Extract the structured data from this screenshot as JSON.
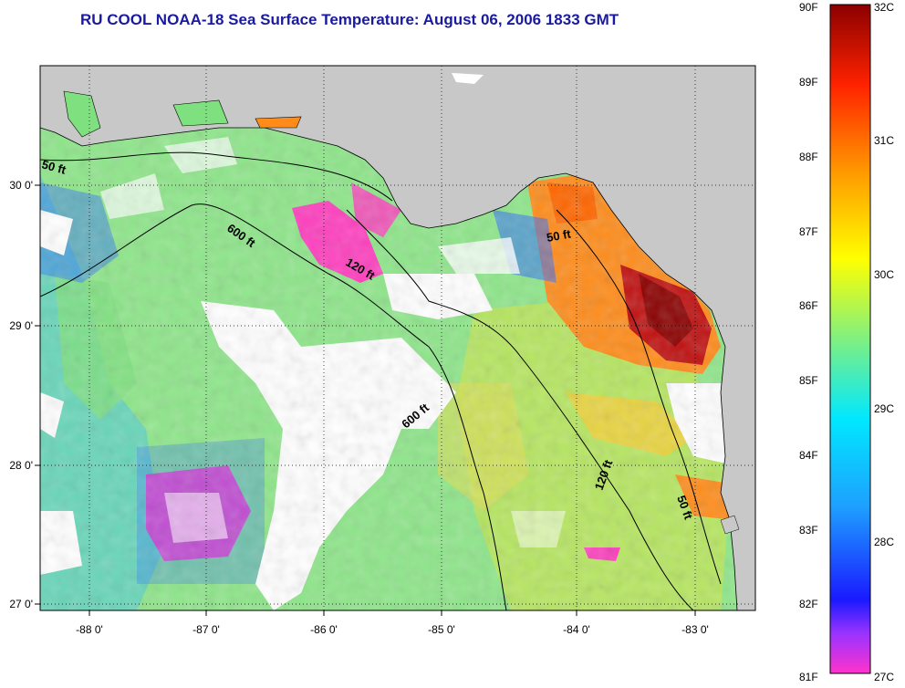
{
  "title": "RU COOL  NOAA-18  Sea Surface Temperature:  August 06, 2006 1833 GMT",
  "map": {
    "lon_labels": [
      "-88 0'",
      "-87 0'",
      "-86 0'",
      "-85 0'",
      "-84 0'",
      "-83 0'"
    ],
    "lat_labels": [
      "30 0'",
      "29 0'",
      "28 0'",
      "27 0'"
    ],
    "contours": [
      "50 ft",
      "600 ft",
      "120 ft",
      "50 ft",
      "600 ft",
      "120 ft",
      "50 ft"
    ],
    "colors": {
      "land": "#c8c8c8",
      "cloud": "#ffffff",
      "cool": "#ff3fbf",
      "mid": "#7ee07e",
      "warm": "#ff8800",
      "hot": "#a00000"
    }
  },
  "colorbar": {
    "f_labels": [
      "90F",
      "89F",
      "88F",
      "87F",
      "86F",
      "85F",
      "84F",
      "83F",
      "82F",
      "81F"
    ],
    "c_labels": [
      "32C",
      "31C",
      "30C",
      "29C",
      "28C",
      "27C"
    ]
  }
}
